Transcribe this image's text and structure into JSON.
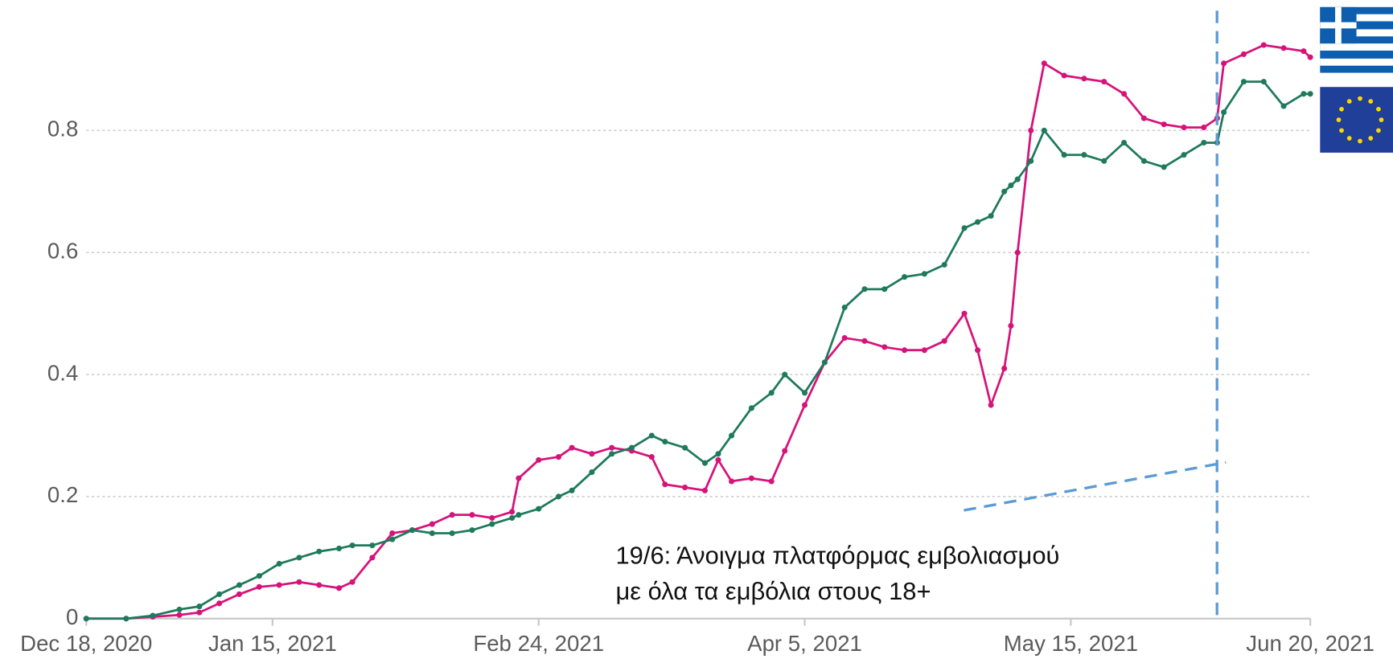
{
  "chart_data": {
    "type": "line",
    "x": [
      "2020-12-18",
      "2020-12-24",
      "2020-12-28",
      "2021-01-01",
      "2021-01-04",
      "2021-01-07",
      "2021-01-10",
      "2021-01-13",
      "2021-01-16",
      "2021-01-19",
      "2021-01-22",
      "2021-01-25",
      "2021-01-27",
      "2021-01-30",
      "2021-02-02",
      "2021-02-05",
      "2021-02-08",
      "2021-02-11",
      "2021-02-14",
      "2021-02-17",
      "2021-02-20",
      "2021-02-21",
      "2021-02-24",
      "2021-02-27",
      "2021-03-01",
      "2021-03-04",
      "2021-03-07",
      "2021-03-10",
      "2021-03-13",
      "2021-03-15",
      "2021-03-18",
      "2021-03-21",
      "2021-03-23",
      "2021-03-25",
      "2021-03-28",
      "2021-03-31",
      "2021-04-02",
      "2021-04-05",
      "2021-04-08",
      "2021-04-11",
      "2021-04-14",
      "2021-04-17",
      "2021-04-20",
      "2021-04-23",
      "2021-04-26",
      "2021-04-29",
      "2021-05-01",
      "2021-05-03",
      "2021-05-05",
      "2021-05-06",
      "2021-05-07",
      "2021-05-09",
      "2021-05-11",
      "2021-05-14",
      "2021-05-17",
      "2021-05-20",
      "2021-05-23",
      "2021-05-26",
      "2021-05-29",
      "2021-06-01",
      "2021-06-04",
      "2021-06-06",
      "2021-06-07",
      "2021-06-10",
      "2021-06-13",
      "2021-06-16",
      "2021-06-19",
      "2021-06-20"
    ],
    "series": [
      {
        "color": "#d6137a",
        "values": [
          0,
          0,
          0.003,
          0.006,
          0.01,
          0.025,
          0.04,
          0.052,
          0.055,
          0.06,
          0.055,
          0.05,
          0.06,
          0.1,
          0.14,
          0.145,
          0.155,
          0.17,
          0.17,
          0.165,
          0.175,
          0.23,
          0.26,
          0.265,
          0.28,
          0.27,
          0.28,
          0.275,
          0.265,
          0.22,
          0.215,
          0.21,
          0.26,
          0.225,
          0.23,
          0.225,
          0.275,
          0.35,
          0.42,
          0.46,
          0.455,
          0.445,
          0.44,
          0.44,
          0.455,
          0.5,
          0.44,
          0.35,
          0.41,
          0.48,
          0.6,
          0.8,
          0.91,
          0.89,
          0.885,
          0.88,
          0.86,
          0.82,
          0.81,
          0.805,
          0.805,
          0.82,
          0.91,
          0.925,
          0.94,
          0.935,
          0.93,
          0.92
        ]
      },
      {
        "color": "#1f7a5c",
        "values": [
          0,
          0,
          0.005,
          0.015,
          0.02,
          0.04,
          0.055,
          0.07,
          0.09,
          0.1,
          0.11,
          0.115,
          0.12,
          0.12,
          0.13,
          0.145,
          0.14,
          0.14,
          0.145,
          0.155,
          0.165,
          0.17,
          0.18,
          0.2,
          0.21,
          0.24,
          0.27,
          0.28,
          0.3,
          0.29,
          0.28,
          0.255,
          0.27,
          0.3,
          0.345,
          0.37,
          0.4,
          0.37,
          0.42,
          0.51,
          0.54,
          0.54,
          0.56,
          0.565,
          0.58,
          0.64,
          0.65,
          0.66,
          0.7,
          0.71,
          0.72,
          0.75,
          0.8,
          0.76,
          0.76,
          0.75,
          0.78,
          0.75,
          0.74,
          0.76,
          0.78,
          0.78,
          0.83,
          0.88,
          0.88,
          0.84,
          0.86,
          0.86
        ]
      }
    ],
    "xlim": [
      "2020-12-18",
      "2021-06-20"
    ],
    "xticks": [
      {
        "value": "2020-12-18",
        "label": "Dec 18, 2020"
      },
      {
        "value": "2021-01-15",
        "label": "Jan 15, 2021"
      },
      {
        "value": "2021-02-24",
        "label": "Feb 24, 2021"
      },
      {
        "value": "2021-04-05",
        "label": "Apr 5, 2021"
      },
      {
        "value": "2021-05-15",
        "label": "May 15, 2021"
      },
      {
        "value": "2021-06-20",
        "label": "Jun 20, 2021"
      }
    ],
    "ylim": [
      0,
      1
    ],
    "yticks": [
      0,
      0.2,
      0.4,
      0.6,
      0.8
    ],
    "grid": true,
    "annotations": [
      "19/6: Άνοιγμα πλατφόρμας εμβολιασμού",
      "με όλα τα εμβόλια στους 18+"
    ]
  }
}
